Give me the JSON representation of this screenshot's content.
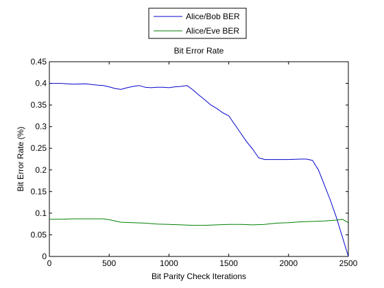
{
  "chart_data": {
    "type": "line",
    "title": "Bit Error Rate",
    "xlabel": "Bit Parity Check Iterations",
    "ylabel": "Bit Error Rate (%)",
    "xlim": [
      0,
      2500
    ],
    "ylim": [
      0,
      0.45
    ],
    "xticks": [
      0,
      500,
      1000,
      1500,
      2000,
      2500
    ],
    "yticks": [
      0,
      0.05,
      0.1,
      0.15,
      0.2,
      0.25,
      0.3,
      0.35,
      0.4,
      0.45
    ],
    "xtick_labels": [
      "0",
      "500",
      "1000",
      "1500",
      "2000",
      "2500"
    ],
    "ytick_labels": [
      "0",
      "0.05",
      "0.1",
      "0.15",
      "0.2",
      "0.25",
      "0.3",
      "0.35",
      "0.4",
      "0.45"
    ],
    "grid": false,
    "legend": "top-center, outside plot",
    "series": [
      {
        "name": "Alice/Bob BER",
        "color": "#0000cc",
        "x": [
          0,
          100,
          200,
          300,
          400,
          450,
          500,
          550,
          600,
          650,
          700,
          750,
          800,
          850,
          900,
          950,
          1000,
          1050,
          1100,
          1150,
          1200,
          1250,
          1300,
          1350,
          1400,
          1450,
          1500,
          1550,
          1600,
          1650,
          1700,
          1750,
          1800,
          1900,
          2000,
          2100,
          2150,
          2200,
          2250,
          2300,
          2350,
          2400,
          2450,
          2500
        ],
        "y": [
          0.4,
          0.4,
          0.398,
          0.399,
          0.396,
          0.395,
          0.392,
          0.388,
          0.386,
          0.39,
          0.393,
          0.395,
          0.391,
          0.39,
          0.391,
          0.391,
          0.39,
          0.392,
          0.393,
          0.395,
          0.385,
          0.373,
          0.362,
          0.35,
          0.342,
          0.332,
          0.325,
          0.305,
          0.285,
          0.265,
          0.248,
          0.228,
          0.224,
          0.224,
          0.224,
          0.225,
          0.225,
          0.222,
          0.2,
          0.165,
          0.13,
          0.09,
          0.045,
          0.0
        ]
      },
      {
        "name": "Alice/Eve BER",
        "color": "#008000",
        "x": [
          0,
          100,
          200,
          300,
          400,
          450,
          500,
          550,
          600,
          700,
          800,
          900,
          1000,
          1100,
          1200,
          1300,
          1400,
          1500,
          1600,
          1700,
          1800,
          1900,
          2000,
          2100,
          2200,
          2300,
          2400,
          2450,
          2500
        ],
        "y": [
          0.086,
          0.086,
          0.087,
          0.087,
          0.087,
          0.087,
          0.085,
          0.082,
          0.079,
          0.078,
          0.077,
          0.075,
          0.074,
          0.073,
          0.072,
          0.072,
          0.073,
          0.074,
          0.074,
          0.073,
          0.074,
          0.077,
          0.078,
          0.08,
          0.081,
          0.082,
          0.084,
          0.086,
          0.078
        ]
      }
    ]
  }
}
